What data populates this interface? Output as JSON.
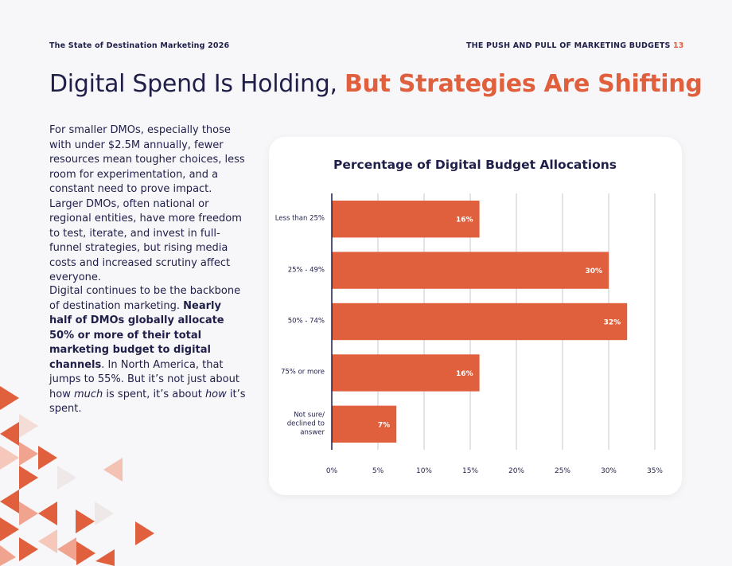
{
  "header": {
    "left": "The State of Destination Marketing 2026",
    "section": "THE PUSH AND PULL OF MARKETING BUDGETS",
    "page": "13"
  },
  "title": {
    "plain": "Digital Spend Is Holding,",
    "accent": "But Strategies Are Shifting"
  },
  "body": {
    "paragraph1": "For smaller DMOs, especially those with under $2.5M annually, fewer resources mean tougher choices, less room for experimentation, and a constant need to prove impact. Larger DMOs, often national or regional entities, have more freedom to test, iterate, and invest in full-funnel strategies, but rising media costs and increased scrutiny affect everyone.",
    "paragraph2": [
      "Digital continues to be the backbone of destination marketing. ",
      "Nearly half of DMOs globally allocate 50% or more of their total marketing budget to digital channels",
      ". In North America, that jumps to 55%. But it’s not just about how ",
      "much",
      " is spent, it’s about ",
      "how",
      " it’s spent."
    ]
  },
  "chart_data": {
    "type": "hbar",
    "title": "Percentage of Digital Budget Allocations",
    "categories": [
      "Less than 25%",
      "25% - 49%",
      "50% - 74%",
      "75% or more",
      "Not sure/ declined to answer"
    ],
    "values": [
      16,
      30,
      32,
      16,
      7
    ],
    "value_labels": [
      "16%",
      "30%",
      "32%",
      "16%",
      "7%"
    ],
    "color": "#e0603d",
    "xlim": [
      0,
      35
    ],
    "xticks": [
      {
        "value": 0,
        "label": "0%"
      },
      {
        "value": 5,
        "label": "5%"
      },
      {
        "value": 10,
        "label": "10%"
      },
      {
        "value": 15,
        "label": "15%"
      },
      {
        "value": 20,
        "label": "20%"
      },
      {
        "value": 25,
        "label": "25%"
      },
      {
        "value": 30,
        "label": "30%"
      },
      {
        "value": 35,
        "label": "35%"
      }
    ],
    "grid": true
  }
}
